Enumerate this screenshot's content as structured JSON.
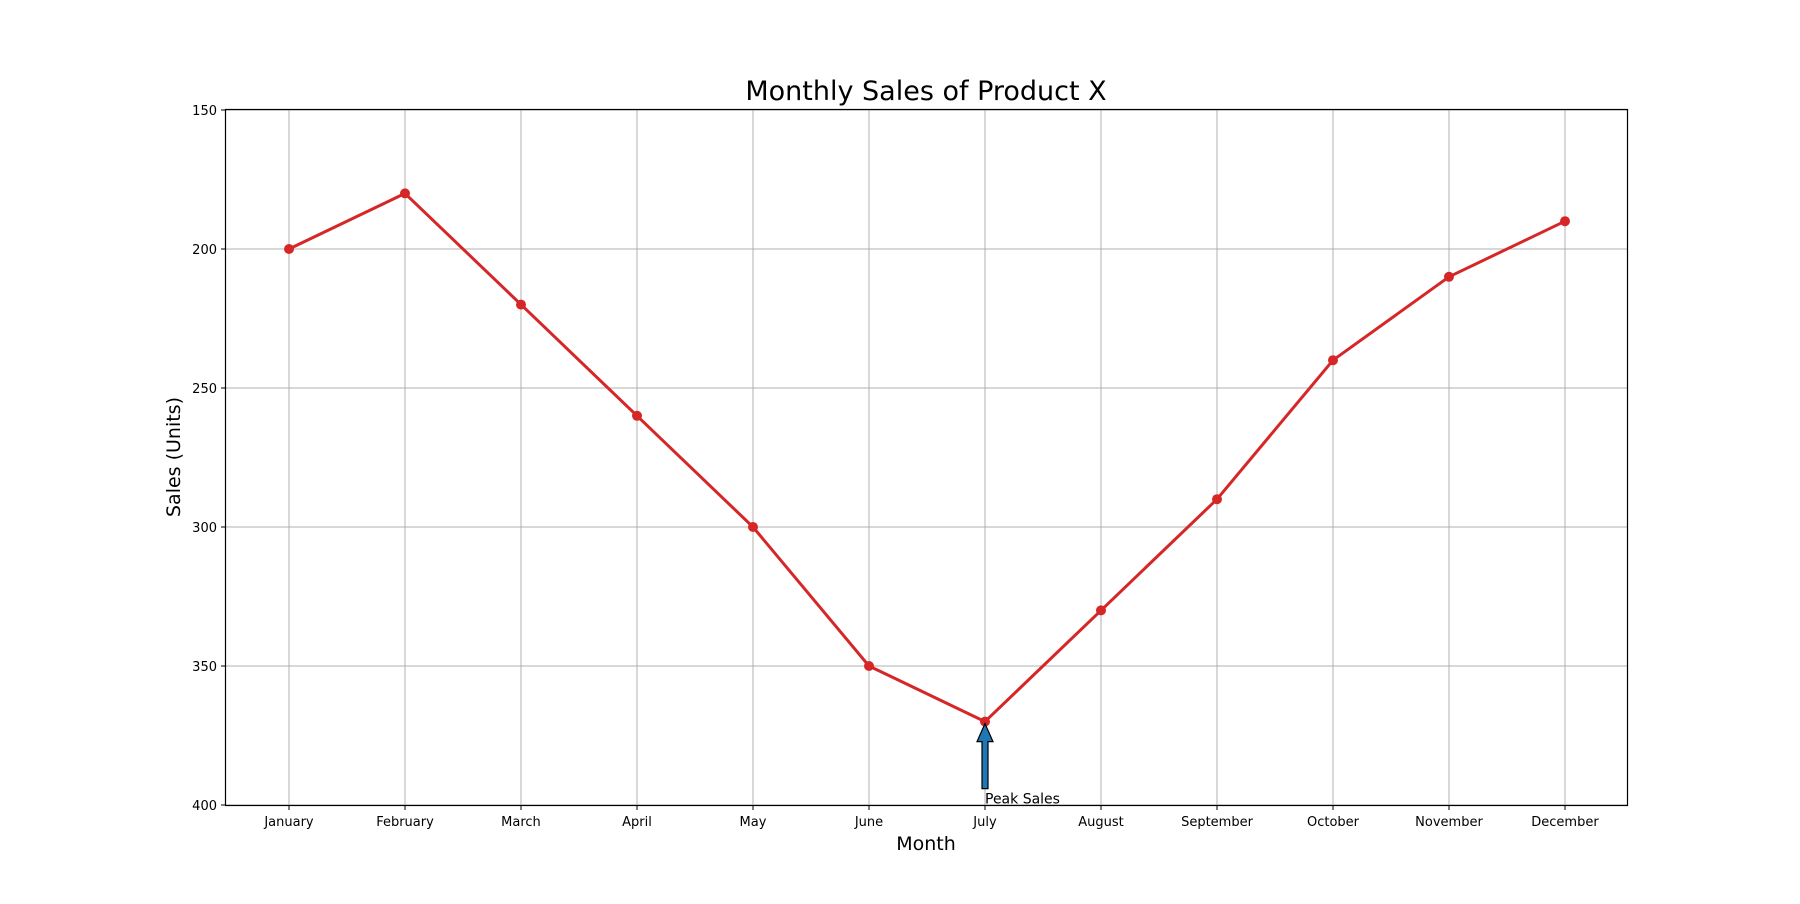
{
  "chart_data": {
    "type": "line",
    "title": "Monthly Sales of Product X",
    "xlabel": "Month",
    "ylabel": "Sales (Units)",
    "categories": [
      "January",
      "February",
      "March",
      "April",
      "May",
      "June",
      "July",
      "August",
      "September",
      "October",
      "November",
      "December"
    ],
    "series": [
      {
        "values": [
          200,
          180,
          220,
          260,
          300,
          350,
          370,
          330,
          290,
          240,
          210,
          190
        ]
      }
    ],
    "ylim": [
      150,
      400
    ],
    "y_inverted": true,
    "yticks": [
      "150",
      "200",
      "250",
      "300",
      "350",
      "400"
    ],
    "grid": true,
    "line_color": "#d62728",
    "annotation": {
      "text": "Peak Sales",
      "category": "July",
      "value": 370,
      "arrow_color": "#1f77b4"
    }
  }
}
